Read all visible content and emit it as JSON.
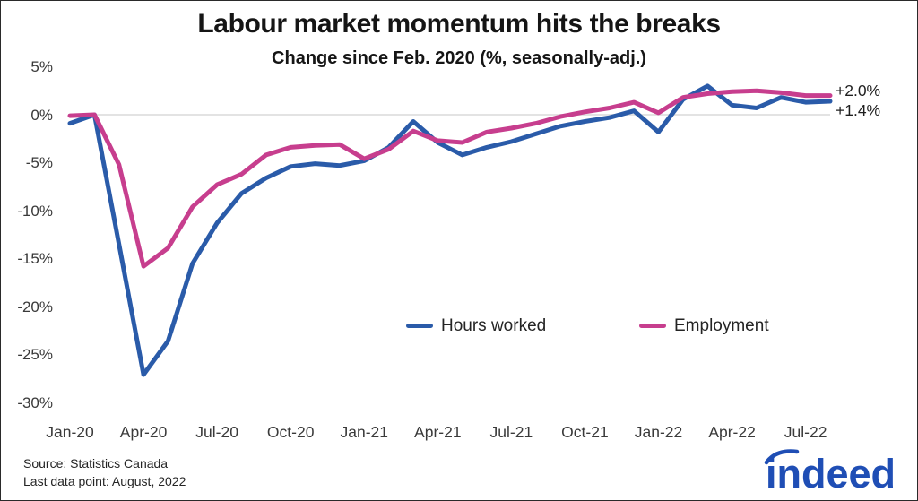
{
  "header": {
    "title": "Labour market momentum hits the breaks",
    "subtitle": "Change since Feb. 2020 (%, seasonally-adj.)"
  },
  "annotations": {
    "employment_end": "+2.0%",
    "hours_end": "+1.4%"
  },
  "footer": {
    "source_line": "Source: Statistics Canada",
    "last_data_point_line": "Last data point: August, 2022"
  },
  "logo": {
    "text": "indeed",
    "color": "#1f4eb5"
  },
  "chart_data": {
    "type": "line",
    "title": "Labour market momentum hits the breaks",
    "subtitle": "Change since Feb. 2020 (%, seasonally-adj.)",
    "xlabel": "",
    "ylabel": "",
    "ylim": [
      -31,
      5.5
    ],
    "grid": "horizontal line at 0% only",
    "legend_position": "inside lower-center",
    "x": [
      "Jan-20",
      "Feb-20",
      "Mar-20",
      "Apr-20",
      "May-20",
      "Jun-20",
      "Jul-20",
      "Aug-20",
      "Sep-20",
      "Oct-20",
      "Nov-20",
      "Dec-20",
      "Jan-21",
      "Feb-21",
      "Mar-21",
      "Apr-21",
      "May-21",
      "Jun-21",
      "Jul-21",
      "Aug-21",
      "Sep-21",
      "Oct-21",
      "Nov-21",
      "Dec-21",
      "Jan-22",
      "Feb-22",
      "Mar-22",
      "Apr-22",
      "May-22",
      "Jun-22",
      "Jul-22",
      "Aug-22"
    ],
    "x_ticks": [
      {
        "label": "Jan-20",
        "month_index": 0
      },
      {
        "label": "Apr-20",
        "month_index": 3
      },
      {
        "label": "Jul-20",
        "month_index": 6
      },
      {
        "label": "Oct-20",
        "month_index": 9
      },
      {
        "label": "Jan-21",
        "month_index": 12
      },
      {
        "label": "Apr-21",
        "month_index": 15
      },
      {
        "label": "Jul-21",
        "month_index": 18
      },
      {
        "label": "Oct-21",
        "month_index": 21
      },
      {
        "label": "Jan-22",
        "month_index": 24
      },
      {
        "label": "Apr-22",
        "month_index": 27
      },
      {
        "label": "Jul-22",
        "month_index": 30
      }
    ],
    "y_ticks": [
      {
        "label": "5%",
        "value": 5
      },
      {
        "label": "0%",
        "value": 0
      },
      {
        "label": "-5%",
        "value": -5
      },
      {
        "label": "-10%",
        "value": -10
      },
      {
        "label": "-15%",
        "value": -15
      },
      {
        "label": "-20%",
        "value": -20
      },
      {
        "label": "-25%",
        "value": -25
      },
      {
        "label": "-30%",
        "value": -30
      }
    ],
    "series": [
      {
        "name": "Hours worked",
        "color": "#2a5ba9",
        "end_label": "+1.4%",
        "values": [
          -0.9,
          0.0,
          -13.5,
          -27.1,
          -23.6,
          -15.5,
          -11.3,
          -8.2,
          -6.6,
          -5.4,
          -5.1,
          -5.3,
          -4.8,
          -3.4,
          -0.7,
          -2.9,
          -4.2,
          -3.4,
          -2.8,
          -2.0,
          -1.2,
          -0.7,
          -0.3,
          0.4,
          -1.8,
          1.6,
          3.0,
          1.0,
          0.7,
          1.8,
          1.3,
          1.4
        ]
      },
      {
        "name": "Employment",
        "color": "#c73e8e",
        "end_label": "+2.0%",
        "values": [
          -0.1,
          0.0,
          -5.2,
          -15.8,
          -13.9,
          -9.6,
          -7.3,
          -6.2,
          -4.2,
          -3.4,
          -3.2,
          -3.1,
          -4.6,
          -3.6,
          -1.7,
          -2.7,
          -2.9,
          -1.8,
          -1.4,
          -0.9,
          -0.2,
          0.3,
          0.7,
          1.3,
          0.2,
          1.8,
          2.2,
          2.4,
          2.5,
          2.3,
          2.0,
          2.0
        ]
      }
    ]
  }
}
